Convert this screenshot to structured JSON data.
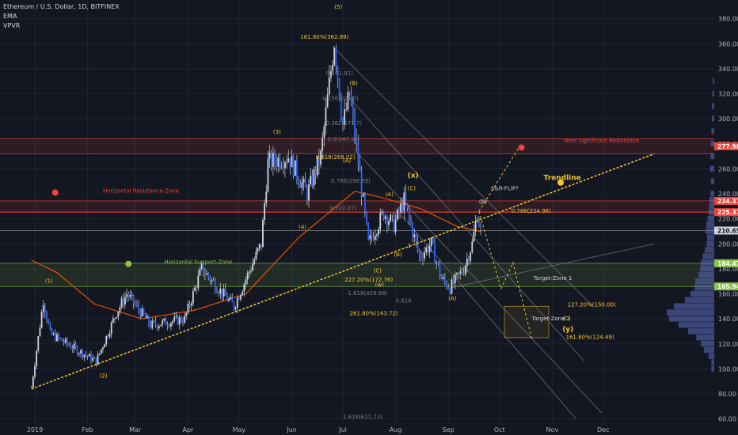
{
  "header": {
    "title": "Ethereum / U.S. Dollar, 1D, BITFINEX",
    "indicators": [
      "EMA",
      "VPVR"
    ]
  },
  "colors": {
    "background": "#131722",
    "grid": "#1f2330",
    "up": "#26a69a",
    "down": "#ef5350",
    "candle_fill": "#2962ff",
    "ema": "#e65100",
    "trendline": "#f7c531",
    "fib_label": "#f7c531",
    "resistance": "#f44336",
    "support": "#8bc34a",
    "channel": "#787b86"
  },
  "chart_data": {
    "type": "candlestick",
    "title": "Ethereum / U.S. Dollar, 1D, BITFINEX",
    "x_ticks": [
      "2019",
      "Feb",
      "Mar",
      "Apr",
      "May",
      "Jun",
      "Jul",
      "Aug",
      "Sep",
      "Oct",
      "Nov",
      "Dec"
    ],
    "y_ticks": [
      60,
      80,
      100,
      120,
      140,
      160,
      180,
      200,
      220,
      240,
      260,
      280,
      300,
      320,
      340,
      360,
      380
    ],
    "ylim": [
      56,
      395
    ],
    "current_price": "210.65",
    "price_tags": [
      {
        "value": 277.98,
        "text": "277.98",
        "color": "#f44336"
      },
      {
        "value": 234.37,
        "text": "234.37",
        "color": "#f44336"
      },
      {
        "value": 225.37,
        "text": "225.37",
        "color": "#f44336"
      },
      {
        "value": 210.65,
        "text": "210.65",
        "color": "#d1d4dc"
      },
      {
        "value": 184.47,
        "text": "184.47",
        "color": "#8bc34a"
      },
      {
        "value": 165.94,
        "text": "165.94",
        "color": "#8bc34a"
      }
    ],
    "price_path": [
      {
        "date": "2018-12-30",
        "price": 85
      },
      {
        "date": "2019-01-06",
        "price": 155
      },
      {
        "date": "2019-01-10",
        "price": 128
      },
      {
        "date": "2019-01-20",
        "price": 120
      },
      {
        "date": "2019-02-06",
        "price": 106
      },
      {
        "date": "2019-02-18",
        "price": 145
      },
      {
        "date": "2019-02-24",
        "price": 160
      },
      {
        "date": "2019-03-10",
        "price": 135
      },
      {
        "date": "2019-03-30",
        "price": 140
      },
      {
        "date": "2019-04-09",
        "price": 180
      },
      {
        "date": "2019-04-28",
        "price": 150
      },
      {
        "date": "2019-05-14",
        "price": 200
      },
      {
        "date": "2019-05-18",
        "price": 265
      },
      {
        "date": "2019-05-30",
        "price": 270
      },
      {
        "date": "2019-06-10",
        "price": 240
      },
      {
        "date": "2019-06-18",
        "price": 270
      },
      {
        "date": "2019-06-26",
        "price": 362
      },
      {
        "date": "2019-07-01",
        "price": 295
      },
      {
        "date": "2019-07-05",
        "price": 320
      },
      {
        "date": "2019-07-16",
        "price": 200
      },
      {
        "date": "2019-07-25",
        "price": 225
      },
      {
        "date": "2019-07-31",
        "price": 215
      },
      {
        "date": "2019-08-06",
        "price": 235
      },
      {
        "date": "2019-08-15",
        "price": 190
      },
      {
        "date": "2019-08-22",
        "price": 200
      },
      {
        "date": "2019-08-28",
        "price": 172
      },
      {
        "date": "2019-09-02",
        "price": 165
      },
      {
        "date": "2019-09-10",
        "price": 180
      },
      {
        "date": "2019-09-15",
        "price": 200
      },
      {
        "date": "2019-09-18",
        "price": 224
      },
      {
        "date": "2019-09-20",
        "price": 210
      }
    ],
    "ema_path": [
      {
        "date": "2018-12-30",
        "price": 187
      },
      {
        "date": "2019-01-14",
        "price": 177
      },
      {
        "date": "2019-02-05",
        "price": 152
      },
      {
        "date": "2019-03-05",
        "price": 140
      },
      {
        "date": "2019-04-05",
        "price": 147
      },
      {
        "date": "2019-05-05",
        "price": 160
      },
      {
        "date": "2019-06-05",
        "price": 205
      },
      {
        "date": "2019-07-08",
        "price": 242
      },
      {
        "date": "2019-07-24",
        "price": 237
      },
      {
        "date": "2019-08-16",
        "price": 228
      },
      {
        "date": "2019-09-06",
        "price": 214
      },
      {
        "date": "2019-09-20",
        "price": 210
      }
    ],
    "horizontal_lines": [
      {
        "value": 225.37,
        "color": "#f44336"
      },
      {
        "value": 210.65,
        "color": "#787b86"
      }
    ],
    "zones": [
      {
        "from": 272,
        "to": 284,
        "color": "#f44336"
      },
      {
        "from": 225.4,
        "to": 234.4,
        "color": "#f44336"
      },
      {
        "from": 165.9,
        "to": 184.5,
        "color": "#8bc34a"
      }
    ],
    "trendline": {
      "from": {
        "date": "2018-12-30",
        "price": 84
      },
      "to": {
        "date": "2019-12-31",
        "price": 272
      }
    },
    "channel_lines": [
      {
        "from": {
          "date": "2019-07-04",
          "price": 318
        },
        "to": {
          "date": "2019-11-20",
          "price": 106
        }
      },
      {
        "from": {
          "date": "2019-07-08",
          "price": 275
        },
        "to": {
          "date": "2019-11-30",
          "price": 65
        }
      },
      {
        "from": {
          "date": "2019-08-05",
          "price": 222
        },
        "to": {
          "date": "2019-11-15",
          "price": 60
        }
      },
      {
        "from": {
          "date": "2019-06-25",
          "price": 358
        },
        "to": {
          "date": "2019-11-25",
          "price": 150
        }
      },
      {
        "from": {
          "date": "2019-09-03",
          "price": 165
        },
        "to": {
          "date": "2019-12-31",
          "price": 200
        }
      }
    ],
    "projections": [
      {
        "points": [
          {
            "date": "2019-09-19",
            "price": 226
          },
          {
            "date": "2019-10-12",
            "price": 276
          }
        ],
        "color": "#f7c531"
      },
      {
        "points": [
          {
            "date": "2019-09-19",
            "price": 226
          },
          {
            "date": "2019-10-02",
            "price": 164
          },
          {
            "date": "2019-10-09",
            "price": 185
          },
          {
            "date": "2019-10-20",
            "price": 124
          }
        ],
        "color": "#f7c531"
      }
    ],
    "markers": [
      {
        "date": "2019-02-25",
        "price": 184,
        "color": "#8bc34a"
      },
      {
        "date": "2019-01-13",
        "price": 241,
        "color": "#f44336"
      },
      {
        "date": "2019-10-14",
        "price": 277,
        "color": "#f44336"
      },
      {
        "date": "2019-11-06",
        "price": 249,
        "color": "#f7c531"
      }
    ],
    "annotations": [
      {
        "text": "(5)",
        "date": "2019-06-26",
        "price": 388,
        "color": "#f7c531"
      },
      {
        "text": "161.80%(362.89)",
        "date": "2019-06-06",
        "price": 364,
        "color": "#f7c531"
      },
      {
        "text": "0(161.81)",
        "date": "2019-06-21",
        "price": 335,
        "color": "#787b86"
      },
      {
        "text": "(B)",
        "date": "2019-07-05",
        "price": 327,
        "color": "#f7c531"
      },
      {
        "text": "0.236(224.2)",
        "date": "2019-06-19",
        "price": 315,
        "color": "#787b86"
      },
      {
        "text": "(3)",
        "date": "2019-05-21",
        "price": 288,
        "color": "#f7c531"
      },
      {
        "text": "0.382(271.7)",
        "date": "2019-06-21",
        "price": 295,
        "color": "#787b86"
      },
      {
        "text": "0.5(247.3)",
        "date": "2019-06-22",
        "price": 282,
        "color": "#787b86"
      },
      {
        "text": "0.618(268.02)",
        "date": "2019-06-15",
        "price": 268,
        "color": "#f7c531"
      },
      {
        "text": "(A)",
        "date": "2019-07-01",
        "price": 265,
        "color": "#f7c531"
      },
      {
        "text": "0.786(296.89)",
        "date": "2019-06-24",
        "price": 249,
        "color": "#787b86"
      },
      {
        "text": "(x)",
        "date": "2019-08-08",
        "price": 253,
        "color": "#f7c531"
      },
      {
        "text": "(C)",
        "date": "2019-08-08",
        "price": 243,
        "color": "#f7c531"
      },
      {
        "text": "(A)",
        "date": "2019-07-26",
        "price": 238,
        "color": "#f7c531"
      },
      {
        "text": "1(322.07)",
        "date": "2019-06-23",
        "price": 227,
        "color": "#787b86"
      },
      {
        "text": "(4)",
        "date": "2019-06-05",
        "price": 212,
        "color": "#f7c531"
      },
      {
        "text": "(B)",
        "date": "2019-07-31",
        "price": 190,
        "color": "#f7c531"
      },
      {
        "text": "1",
        "date": "2019-08-08",
        "price": 197,
        "color": "#f7c531"
      },
      {
        "text": "(C)",
        "date": "2019-07-19",
        "price": 177,
        "color": "#f7c531"
      },
      {
        "text": "227.20%(172.76)",
        "date": "2019-07-02",
        "price": 170,
        "color": "#f7c531"
      },
      {
        "text": "(w)",
        "date": "2019-07-20",
        "price": 166,
        "color": "#f7c531"
      },
      {
        "text": "1.618(429.88)",
        "date": "2019-07-04",
        "price": 159,
        "color": "#787b86"
      },
      {
        "text": "0.618",
        "date": "2019-08-01",
        "price": 153,
        "color": "#787b86"
      },
      {
        "text": "(A)",
        "date": "2019-09-01",
        "price": 155,
        "color": "#f7c531"
      },
      {
        "text": "261.80%(143.72)",
        "date": "2019-07-05",
        "price": 143,
        "color": "#f7c531"
      },
      {
        "text": "S&R-FLIP?",
        "date": "2019-09-26",
        "price": 243,
        "color": "#d1d4dc"
      },
      {
        "text": "(B)",
        "date": "2019-09-19",
        "price": 232,
        "color": "#d1d4dc"
      },
      {
        "text": "0.786(224.98)",
        "date": "2019-10-08",
        "price": 225,
        "color": "#f7c531"
      },
      {
        "text": "Horizontal Resistance-Zone",
        "date": "2019-02-10",
        "price": 241,
        "color": "#f44336"
      },
      {
        "text": "Horizontal Support-Zone",
        "date": "2019-03-18",
        "price": 184,
        "color": "#8bc34a"
      },
      {
        "text": "Next significant Resistance",
        "date": "2019-11-08",
        "price": 281,
        "color": "#f44336"
      },
      {
        "text": "Trendline",
        "date": "2019-10-27",
        "price": 251,
        "color": "#f7c531"
      },
      {
        "text": "Target-Zone 1",
        "date": "2019-10-21",
        "price": 171,
        "color": "#d1d4dc"
      },
      {
        "text": "Target-Zone 2",
        "date": "2019-10-20",
        "price": 139,
        "color": "#d1d4dc"
      },
      {
        "text": "127.20%(150.00)",
        "date": "2019-11-10",
        "price": 150,
        "color": "#f7c531"
      },
      {
        "text": "(C)",
        "date": "2019-11-07",
        "price": 139,
        "color": "#f7c531"
      },
      {
        "text": "(y)",
        "date": "2019-11-07",
        "price": 130,
        "color": "#f7c531"
      },
      {
        "text": "161.80%(124.49)",
        "date": "2019-11-09",
        "price": 124,
        "color": "#f7c531"
      },
      {
        "text": "(1)",
        "date": "2019-01-07",
        "price": 169,
        "color": "#f7c531"
      },
      {
        "text": "(2)",
        "date": "2019-02-08",
        "price": 93,
        "color": "#f7c531"
      },
      {
        "text": "2.618(611.73)",
        "date": "2019-07-01",
        "price": 60,
        "color": "#787b86"
      }
    ],
    "target_zone_2": {
      "from": {
        "date": "2019-10-04",
        "price": 125
      },
      "to": {
        "date": "2019-10-30",
        "price": 150
      }
    },
    "volume_profile": [
      {
        "price": 100,
        "volume": 0.06
      },
      {
        "price": 105,
        "volume": 0.06
      },
      {
        "price": 110,
        "volume": 0.12
      },
      {
        "price": 115,
        "volume": 0.22
      },
      {
        "price": 120,
        "volume": 0.28
      },
      {
        "price": 125,
        "volume": 0.38
      },
      {
        "price": 130,
        "volume": 0.55
      },
      {
        "price": 135,
        "volume": 0.75
      },
      {
        "price": 140,
        "volume": 0.95
      },
      {
        "price": 145,
        "volume": 1.0
      },
      {
        "price": 150,
        "volume": 0.85
      },
      {
        "price": 155,
        "volume": 0.62
      },
      {
        "price": 160,
        "volume": 0.5
      },
      {
        "price": 165,
        "volume": 0.42
      },
      {
        "price": 170,
        "volume": 0.4
      },
      {
        "price": 175,
        "volume": 0.33
      },
      {
        "price": 180,
        "volume": 0.3
      },
      {
        "price": 185,
        "volume": 0.28
      },
      {
        "price": 190,
        "volume": 0.24
      },
      {
        "price": 195,
        "volume": 0.2
      },
      {
        "price": 200,
        "volume": 0.16
      },
      {
        "price": 205,
        "volume": 0.15
      },
      {
        "price": 210,
        "volume": 0.18
      },
      {
        "price": 215,
        "volume": 0.17
      },
      {
        "price": 220,
        "volume": 0.14
      },
      {
        "price": 225,
        "volume": 0.12
      },
      {
        "price": 230,
        "volume": 0.11
      },
      {
        "price": 235,
        "volume": 0.1
      },
      {
        "price": 240,
        "volume": 0.08
      },
      {
        "price": 250,
        "volume": 0.07
      },
      {
        "price": 260,
        "volume": 0.09
      },
      {
        "price": 270,
        "volume": 0.08
      },
      {
        "price": 280,
        "volume": 0.07
      },
      {
        "price": 290,
        "volume": 0.06
      },
      {
        "price": 300,
        "volume": 0.05
      },
      {
        "price": 310,
        "volume": 0.05
      },
      {
        "price": 320,
        "volume": 0.04
      },
      {
        "price": 330,
        "volume": 0.03
      }
    ]
  }
}
